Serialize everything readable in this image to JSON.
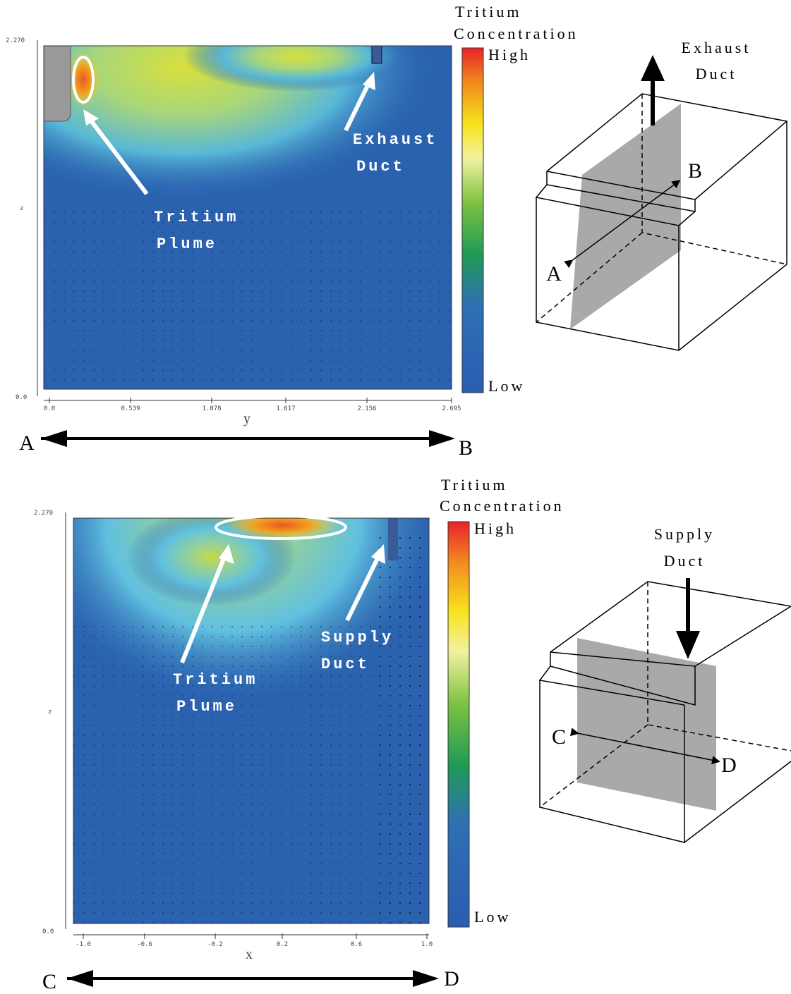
{
  "panels": [
    {
      "colorbar": {
        "title": [
          "Tritium",
          "Concentration"
        ],
        "high": "High",
        "low": "Low"
      },
      "axes": {
        "z_top": "2.270",
        "z_label": "z",
        "z_bottom": "0.0",
        "h_label": "y",
        "h_ticks": [
          "0.0",
          "0.539",
          "1.078",
          "1.617",
          "2.156",
          "2.695"
        ]
      },
      "annotations": [
        {
          "lines": [
            "Tritium",
            "Plume"
          ]
        },
        {
          "lines": [
            "Exhaust",
            "Duct"
          ]
        }
      ],
      "section": {
        "start": "A",
        "end": "B"
      },
      "diagram": {
        "duct": [
          "Exhaust",
          "Duct"
        ],
        "start": "A",
        "end": "B"
      }
    },
    {
      "colorbar": {
        "title": [
          "Tritium",
          "Concentration"
        ],
        "high": "High",
        "low": "Low"
      },
      "axes": {
        "z_top": "2.270",
        "z_label": "z",
        "z_bottom": "0.0",
        "h_label": "x",
        "h_ticks": [
          "-1.0",
          "-0.6",
          "-0.2",
          "0.2",
          "0.6",
          "1.0"
        ]
      },
      "annotations": [
        {
          "lines": [
            "Tritium",
            "Plume"
          ]
        },
        {
          "lines": [
            "Supply",
            "Duct"
          ]
        }
      ],
      "section": {
        "start": "C",
        "end": "D"
      },
      "diagram": {
        "duct": [
          "Supply",
          "Duct"
        ],
        "start": "C",
        "end": "D"
      }
    }
  ]
}
